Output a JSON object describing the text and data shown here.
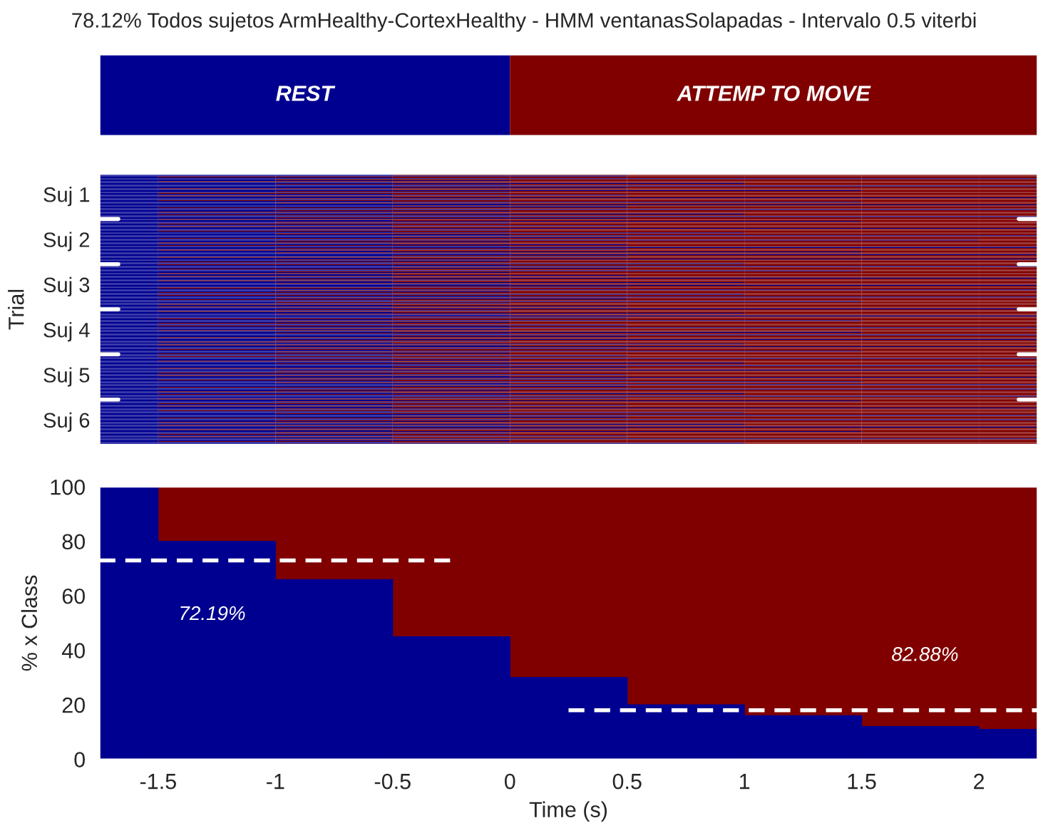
{
  "chart_data": [
    {
      "type": "other",
      "title": "78.12% Todos sujetos ArmHealthy-CortexHealthy - HMM ventanasSolapadas - Intervalo 0.5 viterbi",
      "categories": [
        "REST",
        "ATTEMP TO MOVE"
      ],
      "colors": [
        "#000090",
        "#800000"
      ]
    },
    {
      "type": "other",
      "ylabel": "Trial",
      "categories": [
        "Suj 1",
        "Suj 2",
        "Suj 3",
        "Suj 4",
        "Suj 5",
        "Suj 6"
      ]
    },
    {
      "type": "histogram",
      "xlabel": "Time (s)",
      "ylabel": "% x Class",
      "bins": [
        -1.75,
        -1.5,
        -1,
        -0.5,
        0,
        0.5,
        1,
        1.5,
        2,
        2.25
      ],
      "color": "#000090",
      "values": [
        100,
        80,
        66,
        45,
        30,
        20,
        16,
        12,
        11
      ],
      "bands": [
        {
          "axis": "y",
          "from": 0,
          "to": 100,
          "color": "#800000"
        }
      ],
      "series": [
        {
          "type": "line",
          "line_style": "dashed",
          "color": "#ffffff",
          "x": [
            -1.75,
            -0.25
          ],
          "values": [
            73,
            73
          ]
        },
        {
          "type": "line",
          "line_style": "dashed",
          "color": "#ffffff",
          "x": [
            0.25,
            2.25
          ],
          "values": [
            18,
            18
          ]
        }
      ],
      "xlim": [
        -1.75,
        2.25
      ],
      "ylim": [
        0,
        100
      ],
      "xticks": [
        -1.5,
        -1,
        -0.5,
        0,
        0.5,
        1,
        1.5,
        2
      ],
      "yticks": [
        0,
        20,
        40,
        60,
        80,
        100
      ],
      "annotations": [
        "72.19%",
        "82.88%"
      ]
    }
  ]
}
